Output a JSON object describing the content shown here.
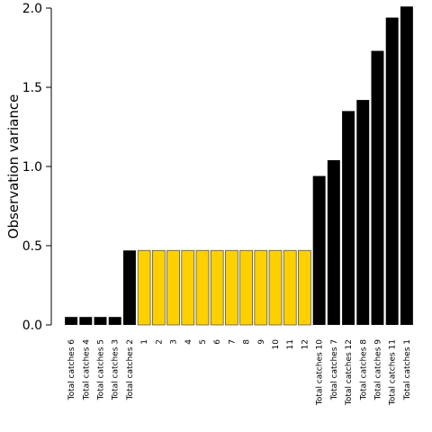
{
  "chart_data": {
    "type": "bar",
    "title": "",
    "xlabel": "",
    "ylabel": "Observation variance",
    "ylim": [
      0,
      2.0
    ],
    "yticks": [
      0.0,
      0.5,
      1.0,
      1.5,
      2.0
    ],
    "ytick_labels": [
      "0.0",
      "0.5",
      "1.0",
      "1.5",
      "2.0"
    ],
    "grid": false,
    "legend": "none",
    "colors": {
      "dark": "#000000",
      "highlight": "#FFD000",
      "highlight_border": "#555555"
    },
    "categories": [
      "Total catches 6",
      "Total catches 4",
      "Total catches 5",
      "Total catches 3",
      "Total catches 2",
      "1",
      "2",
      "3",
      "4",
      "5",
      "6",
      "7",
      "8",
      "9",
      "10",
      "11",
      "12",
      "Total catches 10",
      "Total catches 7",
      "Total catches 12",
      "Total catches 8",
      "Total catches 9",
      "Total catches 11",
      "Total catches 1"
    ],
    "values": [
      0.05,
      0.05,
      0.05,
      0.05,
      0.47,
      0.47,
      0.47,
      0.47,
      0.47,
      0.47,
      0.47,
      0.47,
      0.47,
      0.47,
      0.47,
      0.47,
      0.47,
      0.94,
      1.04,
      1.35,
      1.42,
      1.73,
      1.94,
      2.01
    ],
    "bar_colors": [
      "dark",
      "dark",
      "dark",
      "dark",
      "dark",
      "highlight",
      "highlight",
      "highlight",
      "highlight",
      "highlight",
      "highlight",
      "highlight",
      "highlight",
      "highlight",
      "highlight",
      "highlight",
      "highlight",
      "dark",
      "dark",
      "dark",
      "dark",
      "dark",
      "dark",
      "dark"
    ]
  }
}
